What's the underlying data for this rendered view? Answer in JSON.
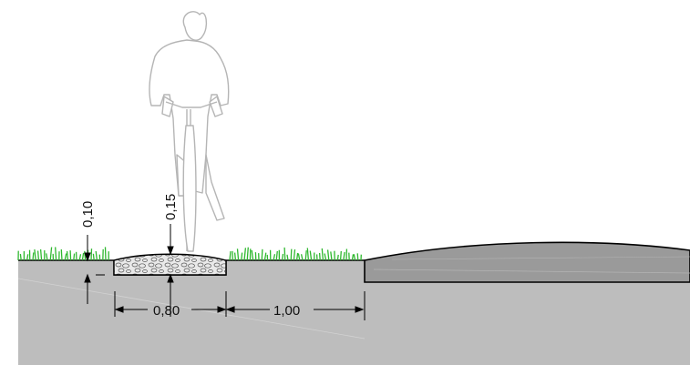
{
  "diagram": {
    "dimensions": {
      "path_height": "0,10",
      "crown_height": "0,15",
      "path_width": "0,80",
      "verge_width": "1,00"
    },
    "colors": {
      "ground": "#bdbdbd",
      "road": "#9a9a9a",
      "grass": "#2fb82f",
      "outline": "#000000",
      "cyclist_stroke": "#b5b5b5"
    },
    "icons": [
      "cyclist-icon",
      "grass-icon",
      "gravel-texture-icon"
    ]
  }
}
